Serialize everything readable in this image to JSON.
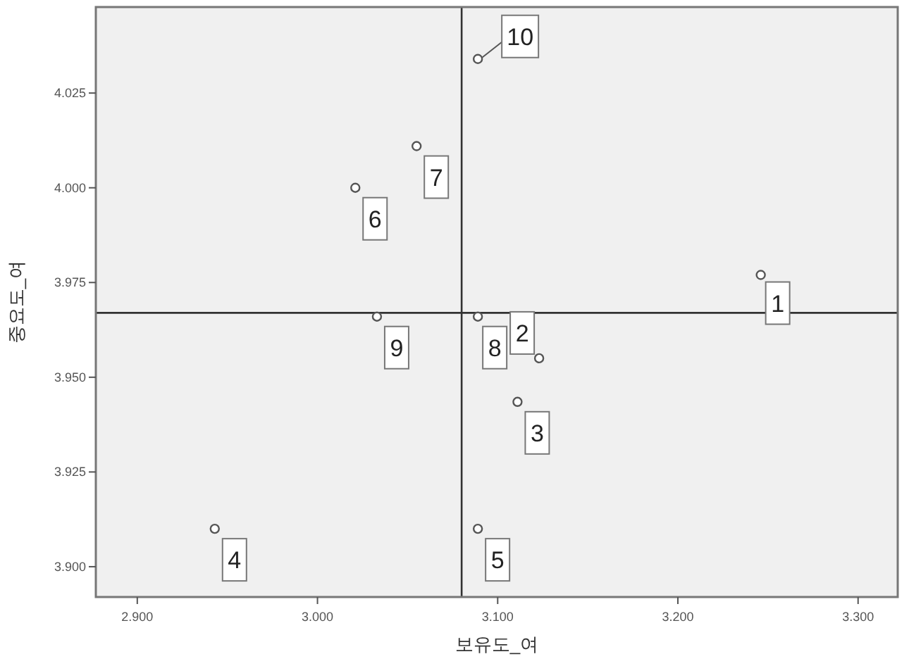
{
  "chart_data": {
    "type": "scatter",
    "xlabel": "보유도_여",
    "ylabel": "중요도_여",
    "x": [
      3.246,
      3.123,
      3.111,
      2.943,
      3.089,
      3.021,
      3.055,
      3.089,
      3.033,
      3.089
    ],
    "values": [
      3.977,
      3.955,
      3.9435,
      3.91,
      3.91,
      4.0,
      4.011,
      3.966,
      3.966,
      4.034
    ],
    "color": "#555555",
    "marker": "circle",
    "grid": false,
    "xlim": [
      2.877,
      3.322
    ],
    "ylim": [
      3.892,
      4.0477
    ],
    "xticks": [
      {
        "value": 2.9,
        "label": "2.900"
      },
      {
        "value": 3.0,
        "label": "3.000"
      },
      {
        "value": 3.1,
        "label": "3.100"
      },
      {
        "value": 3.2,
        "label": "3.200"
      },
      {
        "value": 3.3,
        "label": "3.300"
      }
    ],
    "yticks": [
      {
        "value": 3.9,
        "label": "3.900"
      },
      {
        "value": 3.925,
        "label": "3.925"
      },
      {
        "value": 3.95,
        "label": "3.950"
      },
      {
        "value": 3.975,
        "label": "3.975"
      },
      {
        "value": 4.0,
        "label": "4.000"
      },
      {
        "value": 4.025,
        "label": "4.025"
      }
    ],
    "ref_lines": [
      {
        "axis": "x",
        "value": 3.08
      },
      {
        "axis": "y",
        "value": 3.967
      }
    ],
    "annotations": [
      {
        "text": "1",
        "x": 3.246,
        "y": 3.977
      },
      {
        "text": "2",
        "x": 3.123,
        "y": 3.955
      },
      {
        "text": "3",
        "x": 3.111,
        "y": 3.9435
      },
      {
        "text": "4",
        "x": 2.943,
        "y": 3.91
      },
      {
        "text": "5",
        "x": 3.089,
        "y": 3.91
      },
      {
        "text": "6",
        "x": 3.021,
        "y": 4.0
      },
      {
        "text": "7",
        "x": 3.055,
        "y": 4.011
      },
      {
        "text": "8",
        "x": 3.089,
        "y": 3.966
      },
      {
        "text": "9",
        "x": 3.033,
        "y": 3.966
      },
      {
        "text": "10",
        "x": 3.089,
        "y": 4.034
      }
    ]
  }
}
